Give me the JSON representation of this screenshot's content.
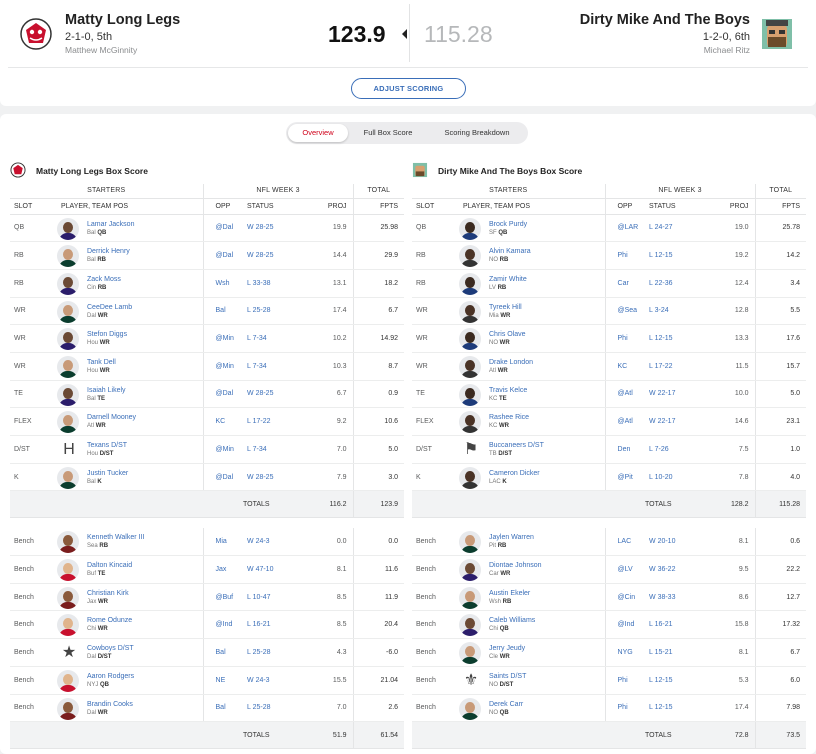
{
  "matchup": {
    "home": {
      "name": "Matty Long Legs",
      "record": "2-1-0, 5th",
      "owner": "Matthew McGinnity",
      "score": "123.9"
    },
    "away": {
      "name": "Dirty Mike And The Boys",
      "record": "1-2-0, 6th",
      "owner": "Michael Ritz",
      "score": "115.28"
    },
    "adjust_label": "ADJUST SCORING"
  },
  "tabs": [
    "Overview",
    "Full Box Score",
    "Scoring Breakdown"
  ],
  "box": {
    "headers": {
      "starters": "STARTERS",
      "week": "NFL WEEK 3",
      "total": "TOTAL",
      "slot": "SLOT",
      "player": "PLAYER, TEAM POS",
      "opp": "OPP",
      "status": "STATUS",
      "proj": "PROJ",
      "fpts": "FPTS",
      "totals": "TOTALS"
    },
    "home": {
      "title": "Matty Long Legs Box Score",
      "starters": [
        {
          "slot": "QB",
          "name": "Lamar Jackson",
          "team": "Bal",
          "pos": "QB",
          "opp": "@Dal",
          "status": "W 28-25",
          "proj": "19.9",
          "fpts": "25.98"
        },
        {
          "slot": "RB",
          "name": "Derrick Henry",
          "team": "Bal",
          "pos": "RB",
          "opp": "@Dal",
          "status": "W 28-25",
          "proj": "14.4",
          "fpts": "29.9"
        },
        {
          "slot": "RB",
          "name": "Zack Moss",
          "team": "Cin",
          "pos": "RB",
          "opp": "Wsh",
          "status": "L 33-38",
          "proj": "13.1",
          "fpts": "18.2"
        },
        {
          "slot": "WR",
          "name": "CeeDee Lamb",
          "team": "Dal",
          "pos": "WR",
          "opp": "Bal",
          "status": "L 25-28",
          "proj": "17.4",
          "fpts": "6.7"
        },
        {
          "slot": "WR",
          "name": "Stefon Diggs",
          "team": "Hou",
          "pos": "WR",
          "opp": "@Min",
          "status": "L 7-34",
          "proj": "10.2",
          "fpts": "14.92"
        },
        {
          "slot": "WR",
          "name": "Tank Dell",
          "team": "Hou",
          "pos": "WR",
          "opp": "@Min",
          "status": "L 7-34",
          "proj": "10.3",
          "fpts": "8.7"
        },
        {
          "slot": "TE",
          "name": "Isaiah Likely",
          "team": "Bal",
          "pos": "TE",
          "opp": "@Dal",
          "status": "W 28-25",
          "proj": "6.7",
          "fpts": "0.9"
        },
        {
          "slot": "FLEX",
          "name": "Darnell Mooney",
          "team": "Atl",
          "pos": "WR",
          "opp": "KC",
          "status": "L 17-22",
          "proj": "9.2",
          "fpts": "10.6"
        },
        {
          "slot": "D/ST",
          "name": "Texans D/ST",
          "team": "Hou",
          "pos": "D/ST",
          "opp": "@Min",
          "status": "L 7-34",
          "proj": "7.0",
          "fpts": "5.0",
          "dst": "H"
        },
        {
          "slot": "K",
          "name": "Justin Tucker",
          "team": "Bal",
          "pos": "K",
          "opp": "@Dal",
          "status": "W 28-25",
          "proj": "7.9",
          "fpts": "3.0"
        }
      ],
      "starter_totals": {
        "proj": "116.2",
        "fpts": "123.9"
      },
      "bench": [
        {
          "slot": "Bench",
          "name": "Kenneth Walker III",
          "team": "Sea",
          "pos": "RB",
          "opp": "Mia",
          "status": "W 24-3",
          "proj": "0.0",
          "fpts": "0.0"
        },
        {
          "slot": "Bench",
          "name": "Dalton Kincaid",
          "team": "Buf",
          "pos": "TE",
          "opp": "Jax",
          "status": "W 47-10",
          "proj": "8.1",
          "fpts": "11.6"
        },
        {
          "slot": "Bench",
          "name": "Christian Kirk",
          "team": "Jax",
          "pos": "WR",
          "opp": "@Buf",
          "status": "L 10-47",
          "proj": "8.5",
          "fpts": "11.9"
        },
        {
          "slot": "Bench",
          "name": "Rome Odunze",
          "team": "Chi",
          "pos": "WR",
          "opp": "@Ind",
          "status": "L 16-21",
          "proj": "8.5",
          "fpts": "20.4"
        },
        {
          "slot": "Bench",
          "name": "Cowboys D/ST",
          "team": "Dal",
          "pos": "D/ST",
          "opp": "Bal",
          "status": "L 25-28",
          "proj": "4.3",
          "fpts": "-6.0",
          "dst": "★"
        },
        {
          "slot": "Bench",
          "name": "Aaron Rodgers",
          "team": "NYJ",
          "pos": "QB",
          "opp": "NE",
          "status": "W 24-3",
          "proj": "15.5",
          "fpts": "21.04"
        },
        {
          "slot": "Bench",
          "name": "Brandin Cooks",
          "team": "Dal",
          "pos": "WR",
          "opp": "Bal",
          "status": "L 25-28",
          "proj": "7.0",
          "fpts": "2.6"
        }
      ],
      "bench_totals": {
        "proj": "51.9",
        "fpts": "61.54"
      }
    },
    "away": {
      "title": "Dirty Mike And The Boys Box Score",
      "starters": [
        {
          "slot": "QB",
          "name": "Brock Purdy",
          "team": "SF",
          "pos": "QB",
          "opp": "@LAR",
          "status": "L 24-27",
          "proj": "19.0",
          "fpts": "25.78"
        },
        {
          "slot": "RB",
          "name": "Alvin Kamara",
          "team": "NO",
          "pos": "RB",
          "opp": "Phi",
          "status": "L 12-15",
          "proj": "19.2",
          "fpts": "14.2"
        },
        {
          "slot": "RB",
          "name": "Zamir White",
          "team": "LV",
          "pos": "RB",
          "opp": "Car",
          "status": "L 22-36",
          "proj": "12.4",
          "fpts": "3.4"
        },
        {
          "slot": "WR",
          "name": "Tyreek Hill",
          "team": "Mia",
          "pos": "WR",
          "opp": "@Sea",
          "status": "L 3-24",
          "proj": "12.8",
          "fpts": "5.5"
        },
        {
          "slot": "WR",
          "name": "Chris Olave",
          "team": "NO",
          "pos": "WR",
          "opp": "Phi",
          "status": "L 12-15",
          "proj": "13.3",
          "fpts": "17.6"
        },
        {
          "slot": "WR",
          "name": "Drake London",
          "team": "Atl",
          "pos": "WR",
          "opp": "KC",
          "status": "L 17-22",
          "proj": "11.5",
          "fpts": "15.7"
        },
        {
          "slot": "TE",
          "name": "Travis Kelce",
          "team": "KC",
          "pos": "TE",
          "opp": "@Atl",
          "status": "W 22-17",
          "proj": "10.0",
          "fpts": "5.0"
        },
        {
          "slot": "FLEX",
          "name": "Rashee Rice",
          "team": "KC",
          "pos": "WR",
          "opp": "@Atl",
          "status": "W 22-17",
          "proj": "14.6",
          "fpts": "23.1"
        },
        {
          "slot": "D/ST",
          "name": "Buccaneers D/ST",
          "team": "TB",
          "pos": "D/ST",
          "opp": "Den",
          "status": "L 7-26",
          "proj": "7.5",
          "fpts": "1.0",
          "dst": "⚑"
        },
        {
          "slot": "K",
          "name": "Cameron Dicker",
          "team": "LAC",
          "pos": "K",
          "opp": "@Pit",
          "status": "L 10-20",
          "proj": "7.8",
          "fpts": "4.0"
        }
      ],
      "starter_totals": {
        "proj": "128.2",
        "fpts": "115.28"
      },
      "bench": [
        {
          "slot": "Bench",
          "name": "Jaylen Warren",
          "team": "Pit",
          "pos": "RB",
          "opp": "LAC",
          "status": "W 20-10",
          "proj": "8.1",
          "fpts": "0.6"
        },
        {
          "slot": "Bench",
          "name": "Diontae Johnson",
          "team": "Car",
          "pos": "WR",
          "opp": "@LV",
          "status": "W 36-22",
          "proj": "9.5",
          "fpts": "22.2"
        },
        {
          "slot": "Bench",
          "name": "Austin Ekeler",
          "team": "Wsh",
          "pos": "RB",
          "opp": "@Cin",
          "status": "W 38-33",
          "proj": "8.6",
          "fpts": "12.7"
        },
        {
          "slot": "Bench",
          "name": "Caleb Williams",
          "team": "Chi",
          "pos": "QB",
          "opp": "@Ind",
          "status": "L 16-21",
          "proj": "15.8",
          "fpts": "17.32"
        },
        {
          "slot": "Bench",
          "name": "Jerry Jeudy",
          "team": "Cle",
          "pos": "WR",
          "opp": "NYG",
          "status": "L 15-21",
          "proj": "8.1",
          "fpts": "6.7"
        },
        {
          "slot": "Bench",
          "name": "Saints D/ST",
          "team": "NO",
          "pos": "D/ST",
          "opp": "Phi",
          "status": "L 12-15",
          "proj": "5.3",
          "fpts": "6.0",
          "dst": "⚜"
        },
        {
          "slot": "Bench",
          "name": "Derek Carr",
          "team": "NO",
          "pos": "QB",
          "opp": "Phi",
          "status": "L 12-15",
          "proj": "17.4",
          "fpts": "7.98"
        }
      ],
      "bench_totals": {
        "proj": "72.8",
        "fpts": "73.5"
      }
    }
  },
  "colors": {
    "link": "#3a6eb8",
    "accent": "#d0021b"
  }
}
